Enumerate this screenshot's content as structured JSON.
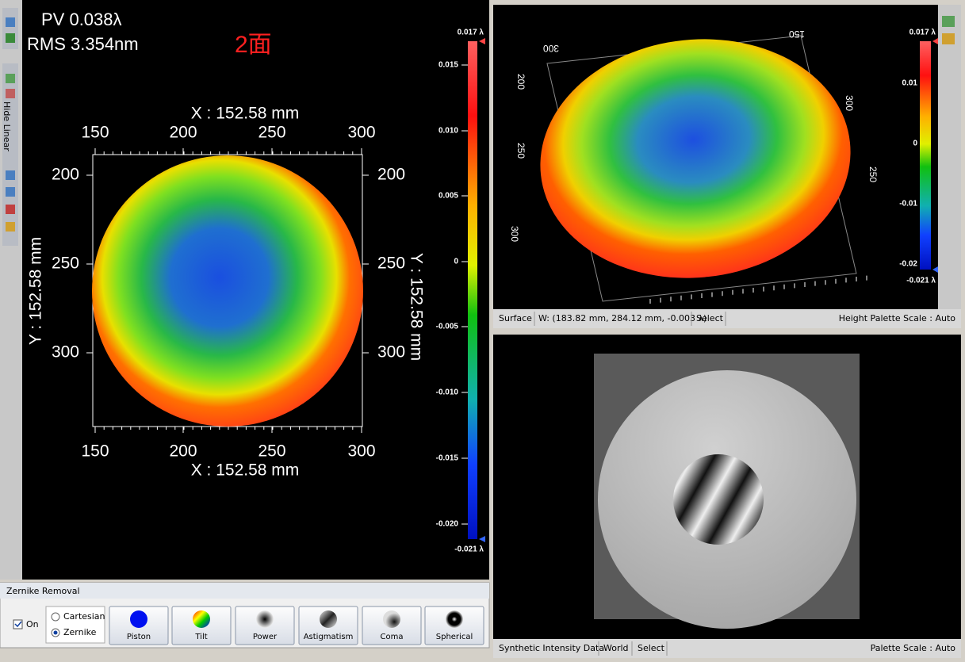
{
  "toolbar": {
    "label": "Hide Linear"
  },
  "map_panel": {
    "pv": "PV 0.038λ",
    "rms": "RMS 3.354nm",
    "label": "2面",
    "x_axis_title_top": "X : 152.58 mm",
    "x_axis_title_bottom": "X : 152.58 mm",
    "y_axis_title_left": "Y : 152.58 mm",
    "y_axis_title_right": "Y : 152.58 mm",
    "x_ticks_top": [
      "150",
      "200",
      "250",
      "300"
    ],
    "x_ticks_bottom": [
      "150",
      "200",
      "250",
      "300"
    ],
    "y_ticks_left": [
      "200",
      "250",
      "300"
    ],
    "y_ticks_right": [
      "200",
      "250",
      "300"
    ],
    "colorbar_labels": [
      "0.017 λ",
      "0.015",
      "0.010",
      "0.005",
      "0",
      "-0.005",
      "-0.010",
      "-0.015",
      "-0.020",
      "-0.021 λ"
    ]
  },
  "surface_panel": {
    "axis_labels": [
      "300",
      "150",
      "200",
      "250",
      "300",
      "300",
      "250"
    ],
    "colorbar_labels": [
      "0.017 λ",
      "0.01",
      "0",
      "-0.01",
      "-0.02",
      "-0.021 λ"
    ],
    "status": [
      "Surface",
      "W: (183.82 mm, 284.12 mm, -0.003 λ)",
      "Select",
      "Height Palette Scale : Auto"
    ]
  },
  "intensity_panel": {
    "status": [
      "Synthetic Intensity Data",
      "World",
      "Select",
      "Palette Scale : Auto"
    ]
  },
  "zernike_panel": {
    "title": "Zernike Removal",
    "on": "On",
    "modes": [
      "Cartesian",
      "Zernike"
    ],
    "buttons": [
      "Piston",
      "Tilt",
      "Power",
      "Astigmatism",
      "Coma",
      "Spherical"
    ]
  }
}
